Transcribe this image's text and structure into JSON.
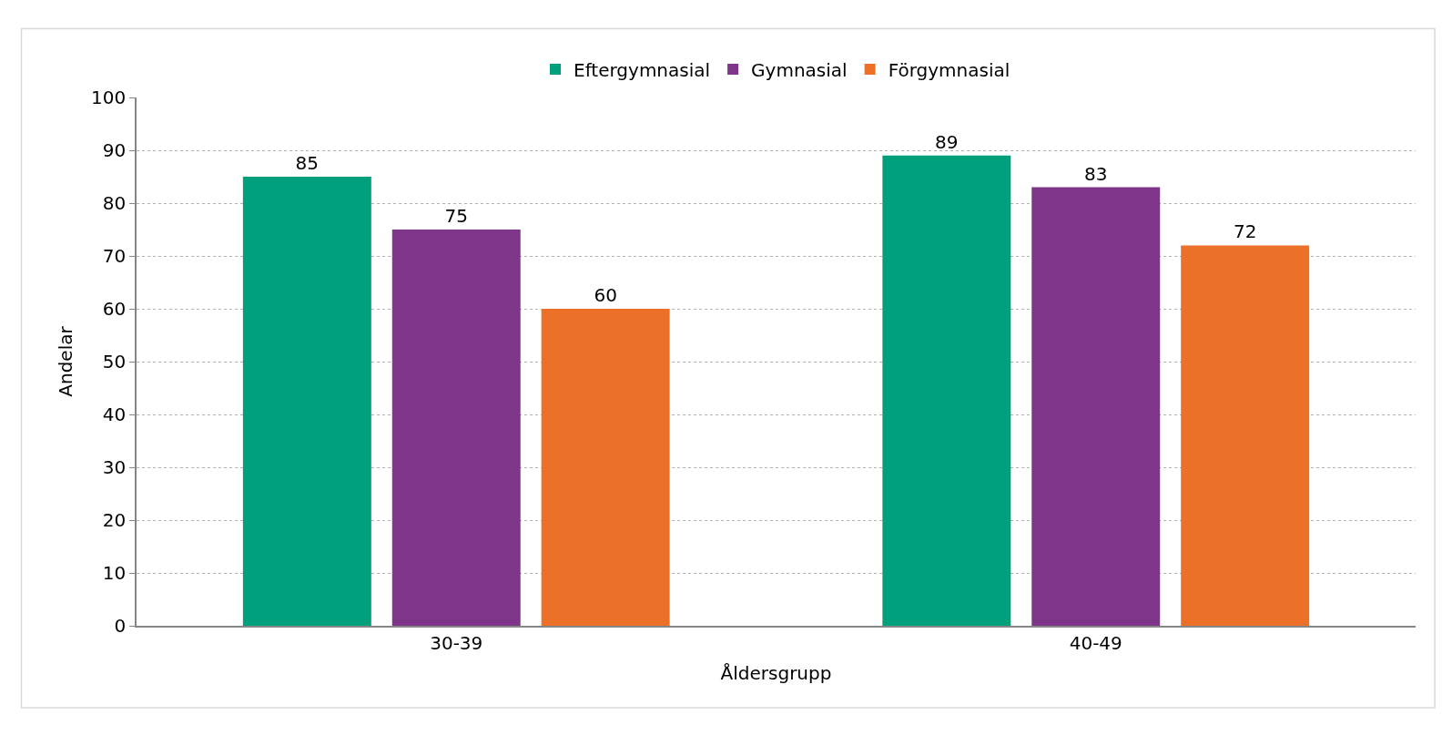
{
  "chart_data": {
    "type": "bar",
    "xlabel": "Åldersgrupp",
    "ylabel": "Andelar",
    "categories": [
      "30-39",
      "40-49"
    ],
    "series": [
      {
        "name": "Eftergymnasial",
        "color": "#00a07c",
        "values": [
          85,
          89
        ]
      },
      {
        "name": "Gymnasial",
        "color": "#7f3589",
        "values": [
          75,
          83
        ]
      },
      {
        "name": "Förgymnasial",
        "color": "#ec7028",
        "values": [
          60,
          72
        ]
      }
    ],
    "ylim": [
      0,
      100
    ],
    "yticks": [
      0,
      10,
      20,
      30,
      40,
      50,
      60,
      70,
      80,
      90,
      100
    ],
    "grid": "y",
    "legend": "top",
    "data_labels": true
  }
}
